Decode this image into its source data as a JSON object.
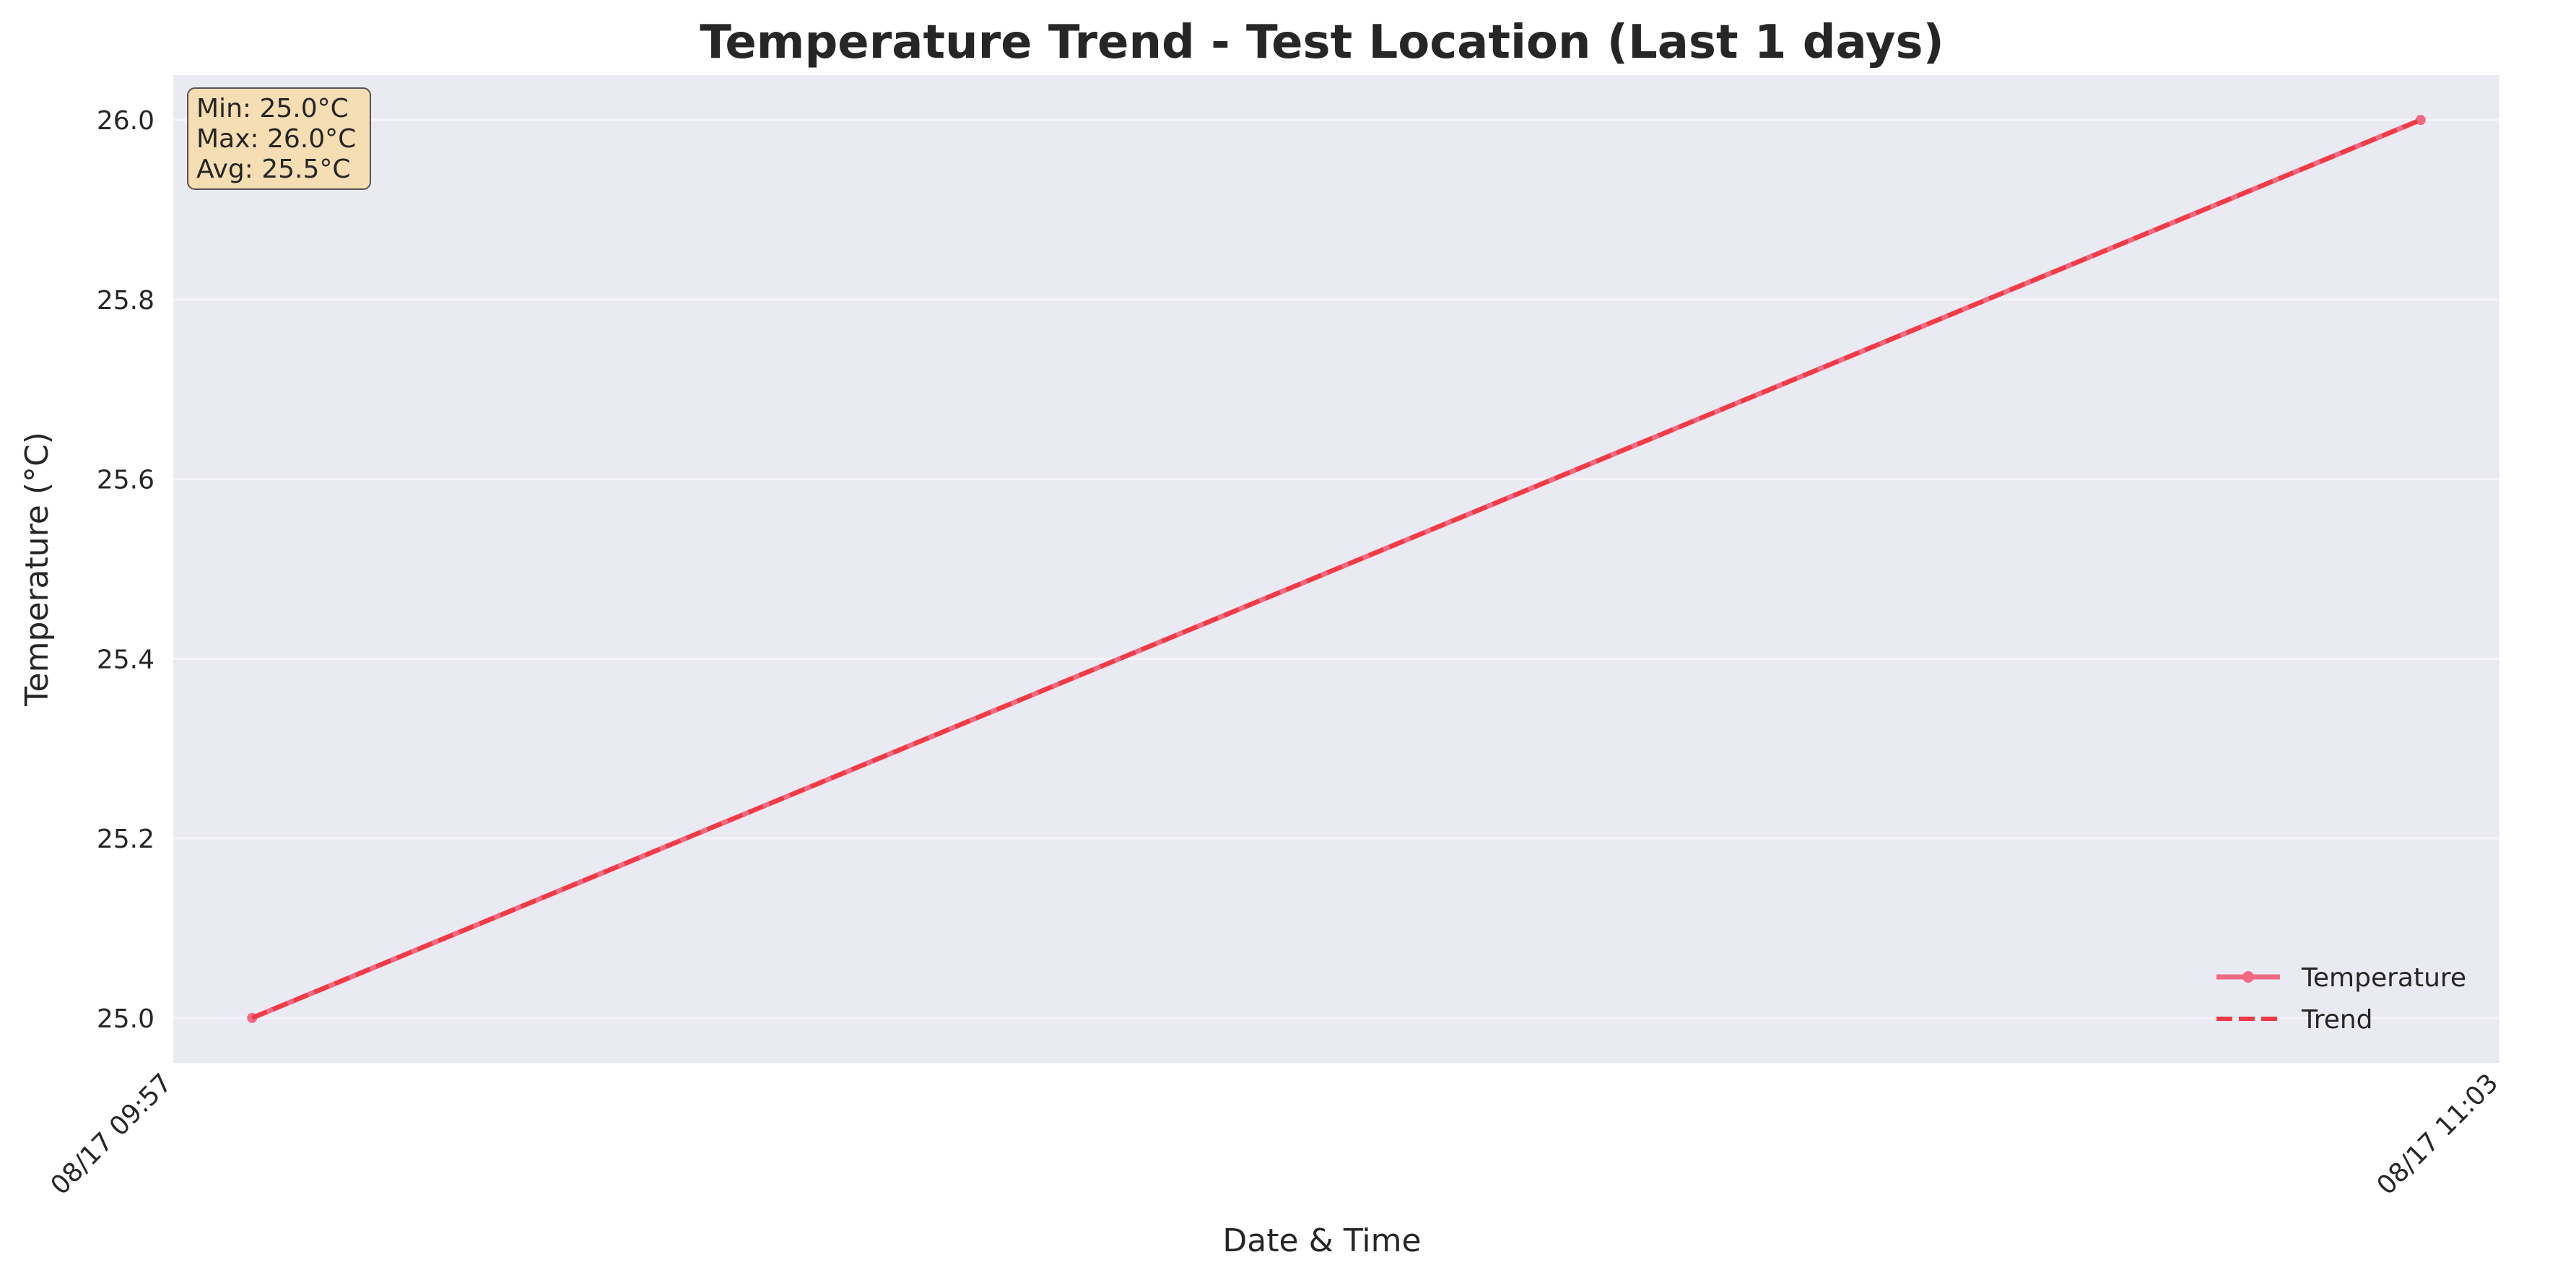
{
  "chart_data": {
    "type": "line",
    "title": "Temperature Trend - Test Location (Last 1 days)",
    "xlabel": "Date & Time",
    "ylabel": "Temperature (°C)",
    "x": [
      "08/17 09:57",
      "08/17 11:03"
    ],
    "x_ticks": [
      "08/17 09:57",
      "08/17 11:03"
    ],
    "ylim": [
      24.95,
      26.05
    ],
    "y_ticks": [
      25.0,
      25.2,
      25.4,
      25.6,
      25.8,
      26.0
    ],
    "y_tick_labels": [
      "25.0",
      "25.2",
      "25.4",
      "25.6",
      "25.8",
      "26.0"
    ],
    "grid": true,
    "legend_position": "lower-right",
    "series": [
      {
        "name": "Temperature",
        "values": [
          25.0,
          26.0
        ],
        "color": "#f06a82",
        "style": "solid-with-markers"
      },
      {
        "name": "Trend",
        "values": [
          25.0,
          26.0
        ],
        "color": "#f03a45",
        "style": "dashed"
      }
    ],
    "stats": {
      "min": "Min: 25.0°C",
      "max": "Max: 26.0°C",
      "avg": "Avg: 25.5°C"
    },
    "colors": {
      "plot_background": "#eaeaf2",
      "grid": "#f4f4f8",
      "stats_box_fill": "#f5deb3"
    }
  }
}
